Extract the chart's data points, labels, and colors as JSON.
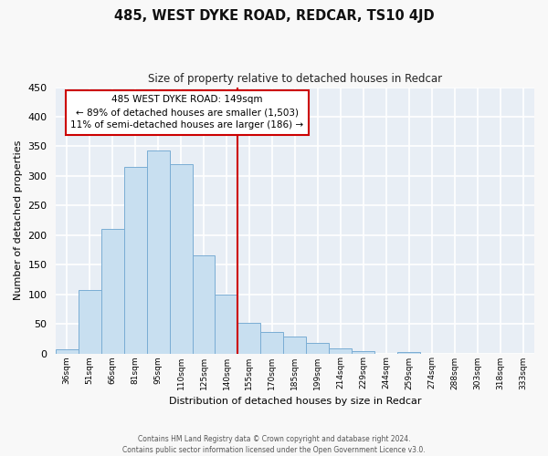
{
  "title": "485, WEST DYKE ROAD, REDCAR, TS10 4JD",
  "subtitle": "Size of property relative to detached houses in Redcar",
  "xlabel": "Distribution of detached houses by size in Redcar",
  "ylabel": "Number of detached properties",
  "bin_labels": [
    "36sqm",
    "51sqm",
    "66sqm",
    "81sqm",
    "95sqm",
    "110sqm",
    "125sqm",
    "140sqm",
    "155sqm",
    "170sqm",
    "185sqm",
    "199sqm",
    "214sqm",
    "229sqm",
    "244sqm",
    "259sqm",
    "274sqm",
    "288sqm",
    "303sqm",
    "318sqm",
    "333sqm"
  ],
  "bar_heights": [
    7,
    107,
    210,
    315,
    343,
    320,
    165,
    99,
    51,
    37,
    28,
    17,
    9,
    4,
    0,
    2,
    0,
    0,
    0,
    0,
    0
  ],
  "bar_color": "#c8dff0",
  "bar_edge_color": "#7aadd4",
  "marker_line_color": "#cc0000",
  "annotation_title": "485 WEST DYKE ROAD: 149sqm",
  "annotation_line1": "← 89% of detached houses are smaller (1,503)",
  "annotation_line2": "11% of semi-detached houses are larger (186) →",
  "annotation_box_color": "white",
  "annotation_box_edge": "#cc0000",
  "ylim": [
    0,
    450
  ],
  "yticks": [
    0,
    50,
    100,
    150,
    200,
    250,
    300,
    350,
    400,
    450
  ],
  "footer_line1": "Contains HM Land Registry data © Crown copyright and database right 2024.",
  "footer_line2": "Contains public sector information licensed under the Open Government Licence v3.0.",
  "bg_color": "#f8f8f8",
  "plot_bg_color": "#e8eef5",
  "grid_color": "#ffffff"
}
